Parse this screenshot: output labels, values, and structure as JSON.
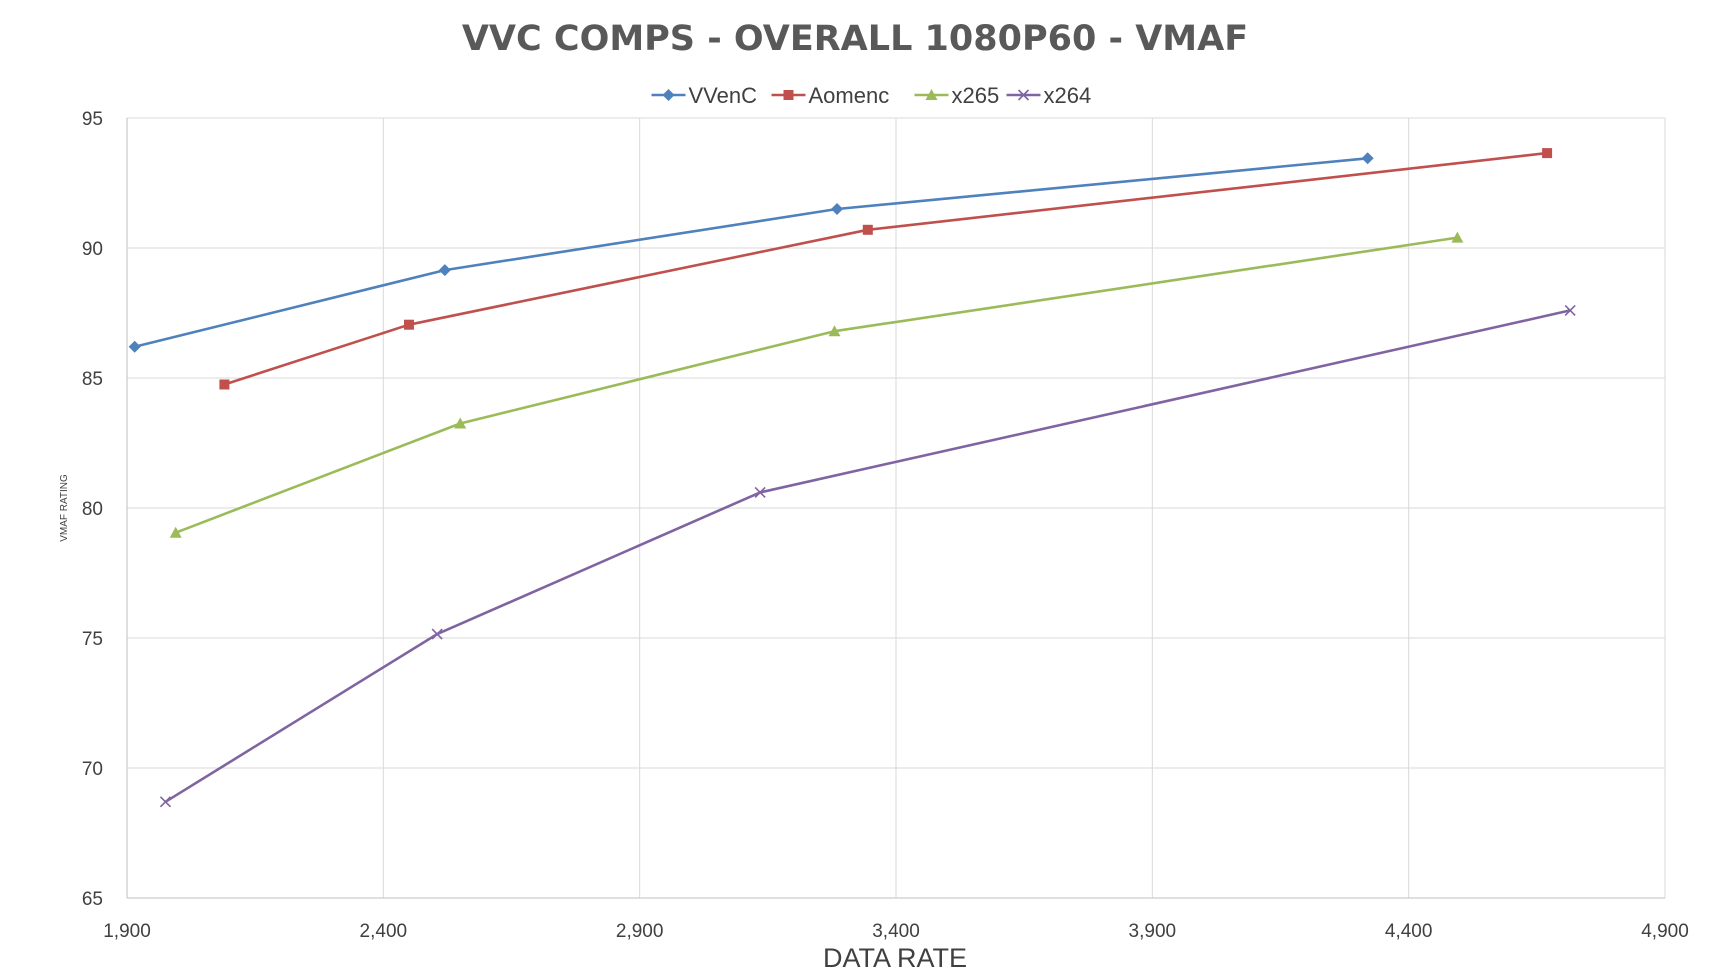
{
  "chart_data": {
    "type": "line",
    "title": "VVC COMPS - OVERALL 1080P60 - VMAF",
    "xlabel": "DATA RATE",
    "ylabel": "VMAF RATING",
    "xlim": [
      1900,
      4900
    ],
    "ylim": [
      65,
      95
    ],
    "x_ticks": [
      1900,
      2400,
      2900,
      3400,
      3900,
      4400,
      4900
    ],
    "x_tick_labels": [
      "1,900",
      "2,400",
      "2,900",
      "3,400",
      "3,900",
      "4,400",
      "4,900"
    ],
    "y_ticks": [
      65,
      70,
      75,
      80,
      85,
      90,
      95
    ],
    "y_tick_labels": [
      "65",
      "70",
      "75",
      "80",
      "85",
      "90",
      "95"
    ],
    "grid": true,
    "legend_position": "top",
    "series": [
      {
        "name": "VVenC",
        "color": "#4f81bd",
        "marker": "diamond",
        "x": [
          1915,
          2520,
          3285,
          4320
        ],
        "y": [
          86.2,
          89.15,
          91.5,
          93.45
        ]
      },
      {
        "name": "Aomenc",
        "color": "#c0504d",
        "marker": "square",
        "x": [
          2090,
          2450,
          3345,
          4670
        ],
        "y": [
          84.75,
          87.05,
          90.7,
          93.65
        ]
      },
      {
        "name": "x265",
        "color": "#9bbb59",
        "marker": "triangle",
        "x": [
          1995,
          2550,
          3280,
          4495
        ],
        "y": [
          79.05,
          83.25,
          86.8,
          90.4
        ]
      },
      {
        "name": "x264",
        "color": "#8064a2",
        "marker": "x",
        "x": [
          1975,
          2505,
          3135,
          4715
        ],
        "y": [
          68.7,
          75.15,
          80.6,
          87.6
        ]
      }
    ]
  }
}
